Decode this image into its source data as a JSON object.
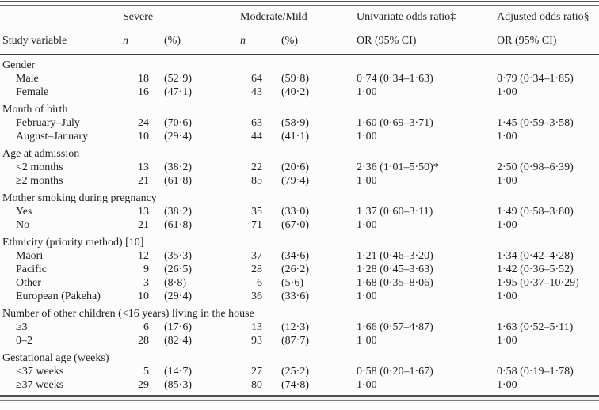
{
  "table": {
    "header": {
      "study_variable": "Study variable",
      "severe": "Severe",
      "moderate_mild": "Moderate/Mild",
      "univariate": "Univariate odds ratio‡",
      "adjusted": "Adjusted odds ratio§",
      "n_label": "n",
      "pct_label": "(%)",
      "or_ci_label": "OR (95% CI)"
    },
    "groups": [
      {
        "label": "Gender",
        "rows": [
          {
            "variable": "Male",
            "severe_n": "18",
            "severe_pct": "(52·9)",
            "mod_n": "64",
            "mod_pct": "(59·8)",
            "univariate_or": "0·74 (0·34–1·63)",
            "adjusted_or": "0·79 (0·34–1·85)"
          },
          {
            "variable": "Female",
            "severe_n": "16",
            "severe_pct": "(47·1)",
            "mod_n": "43",
            "mod_pct": "(40·2)",
            "univariate_or": "1·00",
            "adjusted_or": "1·00"
          }
        ]
      },
      {
        "label": "Month of birth",
        "rows": [
          {
            "variable": "February–July",
            "severe_n": "24",
            "severe_pct": "(70·6)",
            "mod_n": "63",
            "mod_pct": "(58·9)",
            "univariate_or": "1·60 (0·69–3·71)",
            "adjusted_or": "1·45 (0·59–3·58)"
          },
          {
            "variable": "August–January",
            "severe_n": "10",
            "severe_pct": "(29·4)",
            "mod_n": "44",
            "mod_pct": "(41·1)",
            "univariate_or": "1·00",
            "adjusted_or": "1·00"
          }
        ]
      },
      {
        "label": "Age at admission",
        "rows": [
          {
            "variable": "<2 months",
            "severe_n": "13",
            "severe_pct": "(38·2)",
            "mod_n": "22",
            "mod_pct": "(20·6)",
            "univariate_or": "2·36 (1·01–5·50)*",
            "adjusted_or": "2·50 (0·98–6·39)"
          },
          {
            "variable": "≥2 months",
            "severe_n": "21",
            "severe_pct": "(61·8)",
            "mod_n": "85",
            "mod_pct": "(79·4)",
            "univariate_or": "1·00",
            "adjusted_or": "1·00"
          }
        ]
      },
      {
        "label": "Mother smoking during pregnancy",
        "rows": [
          {
            "variable": "Yes",
            "severe_n": "13",
            "severe_pct": "(38·2)",
            "mod_n": "35",
            "mod_pct": "(33·0)",
            "univariate_or": "1·37 (0·60–3·11)",
            "adjusted_or": "1·49 (0·58–3·80)"
          },
          {
            "variable": "No",
            "severe_n": "21",
            "severe_pct": "(61·8)",
            "mod_n": "71",
            "mod_pct": "(67·0)",
            "univariate_or": "1·00",
            "adjusted_or": "1·00"
          }
        ]
      },
      {
        "label": "Ethnicity (priority method) [10]",
        "rows": [
          {
            "variable": "Māori",
            "severe_n": "12",
            "severe_pct": "(35·3)",
            "mod_n": "37",
            "mod_pct": "(34·6)",
            "univariate_or": "1·21 (0·46–3·20)",
            "adjusted_or": "1·34 (0·42–4·28)"
          },
          {
            "variable": "Pacific",
            "severe_n": "9",
            "severe_pct": "(26·5)",
            "mod_n": "28",
            "mod_pct": "(26·2)",
            "univariate_or": "1·28 (0·45–3·63)",
            "adjusted_or": "1·42 (0·36–5·52)"
          },
          {
            "variable": "Other",
            "severe_n": "3",
            "severe_pct": "(8·8)",
            "mod_n": "6",
            "mod_pct": "(5·6)",
            "univariate_or": "1·68 (0·35–8·06)",
            "adjusted_or": "1·95 (0·37–10·29)"
          },
          {
            "variable": "European (Pakeha)",
            "severe_n": "10",
            "severe_pct": "(29·4)",
            "mod_n": "36",
            "mod_pct": "(33·6)",
            "univariate_or": "1·00",
            "adjusted_or": "1·00"
          }
        ]
      },
      {
        "label": "Number of other children (<16 years) living in the house",
        "rows": [
          {
            "variable": "≥3",
            "severe_n": "6",
            "severe_pct": "(17·6)",
            "mod_n": "13",
            "mod_pct": "(12·3)",
            "univariate_or": "1·66 (0·57–4·87)",
            "adjusted_or": "1·63 (0·52–5·11)"
          },
          {
            "variable": "0–2",
            "severe_n": "28",
            "severe_pct": "(82·4)",
            "mod_n": "93",
            "mod_pct": "(87·7)",
            "univariate_or": "1·00",
            "adjusted_or": "1·00"
          }
        ]
      },
      {
        "label": "Gestational age (weeks)",
        "rows": [
          {
            "variable": "<37 weeks",
            "severe_n": "5",
            "severe_pct": "(14·7)",
            "mod_n": "27",
            "mod_pct": "(25·2)",
            "univariate_or": "0·58 (0·20–1·67)",
            "adjusted_or": "0·58 (0·19–1·78)"
          },
          {
            "variable": "≥37 weeks",
            "severe_n": "29",
            "severe_pct": "(85·3)",
            "mod_n": "80",
            "mod_pct": "(74·8)",
            "univariate_or": "1·00",
            "adjusted_or": "1·00"
          }
        ]
      }
    ]
  },
  "colors": {
    "text": "#1f1f1f",
    "background": "#fcfcfc",
    "rule_dark": "#4f4f4f",
    "rule_light": "#8f8f8f"
  }
}
